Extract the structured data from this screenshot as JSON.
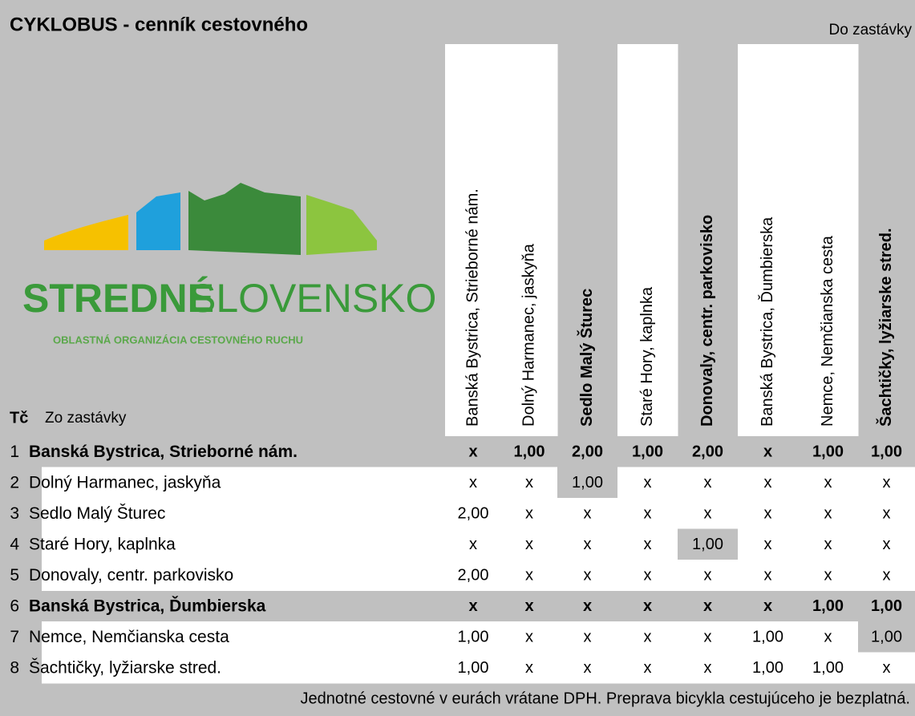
{
  "header": {
    "title": "CYKLOBUS - cenník cestovného",
    "destination_label": "Do zastávky",
    "number_label": "Tč",
    "origin_label": "Zo zastávky"
  },
  "logo": {
    "name_bold": "STREDNÉ",
    "name_light": "SLOVENSKO",
    "subtitle": "OBLASTNÁ ORGANIZÁCIA CESTOVNÉHO RUCHU"
  },
  "table": {
    "columns": [
      {
        "label": "Banská Bystrica, Strieborné nám.",
        "bold": false
      },
      {
        "label": "Dolný Harmanec, jaskyňa",
        "bold": false
      },
      {
        "label": "Sedlo Malý Šturec",
        "bold": true
      },
      {
        "label": "Staré Hory, kaplnka",
        "bold": false
      },
      {
        "label": "Donovaly, centr. parkovisko",
        "bold": true
      },
      {
        "label": "Banská Bystrica, Ďumbierska",
        "bold": false
      },
      {
        "label": "Nemce, Nemčianska cesta",
        "bold": false
      },
      {
        "label": "Šachtičky, lyžiarske stred.",
        "bold": true
      }
    ],
    "rows": [
      {
        "number": "1",
        "name": "Banská Bystrica, Strieborné nám.",
        "bold": true,
        "highlight": [],
        "cells": [
          "x",
          "1,00",
          "2,00",
          "1,00",
          "2,00",
          "x",
          "1,00",
          "1,00"
        ]
      },
      {
        "number": "2",
        "name": "Dolný Harmanec, jaskyňa",
        "bold": false,
        "highlight": [
          2
        ],
        "cells": [
          "x",
          "x",
          "1,00",
          "x",
          "x",
          "x",
          "x",
          "x"
        ]
      },
      {
        "number": "3",
        "name": "Sedlo Malý Šturec",
        "bold": false,
        "highlight": [],
        "cells": [
          "2,00",
          "x",
          "x",
          "x",
          "x",
          "x",
          "x",
          "x"
        ]
      },
      {
        "number": "4",
        "name": "Staré Hory, kaplnka",
        "bold": false,
        "highlight": [
          4
        ],
        "cells": [
          "x",
          "x",
          "x",
          "x",
          "1,00",
          "x",
          "x",
          "x"
        ]
      },
      {
        "number": "5",
        "name": "Donovaly, centr. parkovisko",
        "bold": false,
        "highlight": [],
        "cells": [
          "2,00",
          "x",
          "x",
          "x",
          "x",
          "x",
          "x",
          "x"
        ]
      },
      {
        "number": "6",
        "name": "Banská Bystrica, Ďumbierska",
        "bold": true,
        "highlight": [],
        "cells": [
          "x",
          "x",
          "x",
          "x",
          "x",
          "x",
          "1,00",
          "1,00"
        ]
      },
      {
        "number": "7",
        "name": "Nemce, Nemčianska cesta",
        "bold": false,
        "highlight": [
          7
        ],
        "cells": [
          "1,00",
          "x",
          "x",
          "x",
          "x",
          "1,00",
          "x",
          "1,00"
        ]
      },
      {
        "number": "8",
        "name": "Šachtičky, lyžiarske stred.",
        "bold": false,
        "highlight": [],
        "cells": [
          "1,00",
          "x",
          "x",
          "x",
          "x",
          "1,00",
          "1,00",
          "x"
        ]
      }
    ]
  },
  "footer": "Jednotné cestovné v eurách vrátane DPH. Preprava bicykla cestujúceho je bezplatná."
}
